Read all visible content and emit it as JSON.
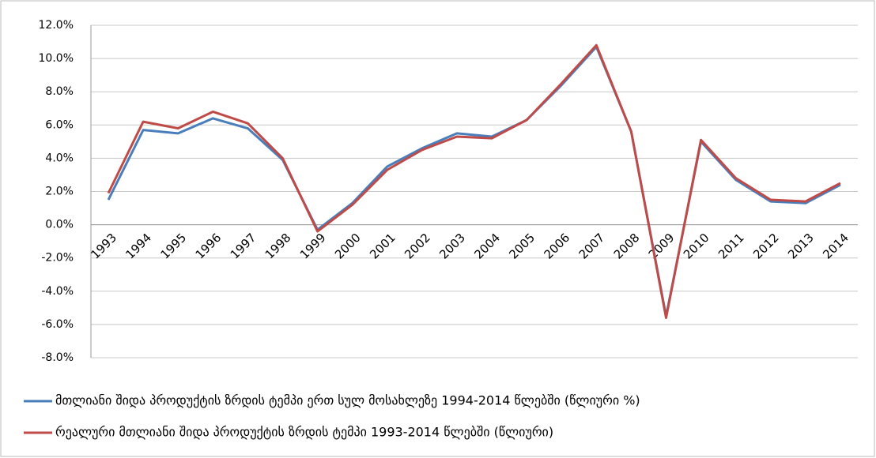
{
  "chart_data": {
    "type": "line",
    "categories": [
      "1993",
      "1994",
      "1995",
      "1996",
      "1997",
      "1998",
      "1999",
      "2000",
      "2001",
      "2002",
      "2003",
      "2004",
      "2005",
      "2006",
      "2007",
      "2008",
      "2009",
      "2010",
      "2011",
      "2012",
      "2013",
      "2014"
    ],
    "series": [
      {
        "name": "მთლიანი შიდა პროდუქტის ზრდის ტემპი ერთ სულ მოსახლეზე 1994-2014 წლებში (წლიური %)",
        "color": "#4a7ebb",
        "values": [
          1.5,
          5.7,
          5.5,
          6.4,
          5.8,
          3.9,
          -0.3,
          1.3,
          3.5,
          4.6,
          5.5,
          5.3,
          6.3,
          8.4,
          10.7,
          5.6,
          -5.5,
          5.0,
          2.7,
          1.4,
          1.3,
          2.4
        ]
      },
      {
        "name": "რეალური მთლიანი შიდა პროდუქტის ზრდის ტემპი 1993-2014 წლებში (წლიური)",
        "color": "#be4b48",
        "values": [
          1.9,
          6.2,
          5.8,
          6.8,
          6.1,
          4.0,
          -0.4,
          1.2,
          3.3,
          4.5,
          5.3,
          5.2,
          6.3,
          8.5,
          10.8,
          5.6,
          -5.6,
          5.1,
          2.8,
          1.5,
          1.4,
          2.5
        ]
      }
    ],
    "ylim": [
      -8,
      12
    ],
    "yticks": [
      {
        "value": 12,
        "label": "12.0%"
      },
      {
        "value": 10,
        "label": "10.0%"
      },
      {
        "value": 8,
        "label": "8.0%"
      },
      {
        "value": 6,
        "label": "6.0%"
      },
      {
        "value": 4,
        "label": "4.0%"
      },
      {
        "value": 2,
        "label": "2.0%"
      },
      {
        "value": 0,
        "label": "0.0%"
      },
      {
        "value": -2,
        "label": "-2.0%"
      },
      {
        "value": -4,
        "label": "-4.0%"
      },
      {
        "value": -6,
        "label": "-6.0%"
      },
      {
        "value": -8,
        "label": "-8.0%"
      }
    ],
    "grid": true,
    "legend": "bottom"
  }
}
